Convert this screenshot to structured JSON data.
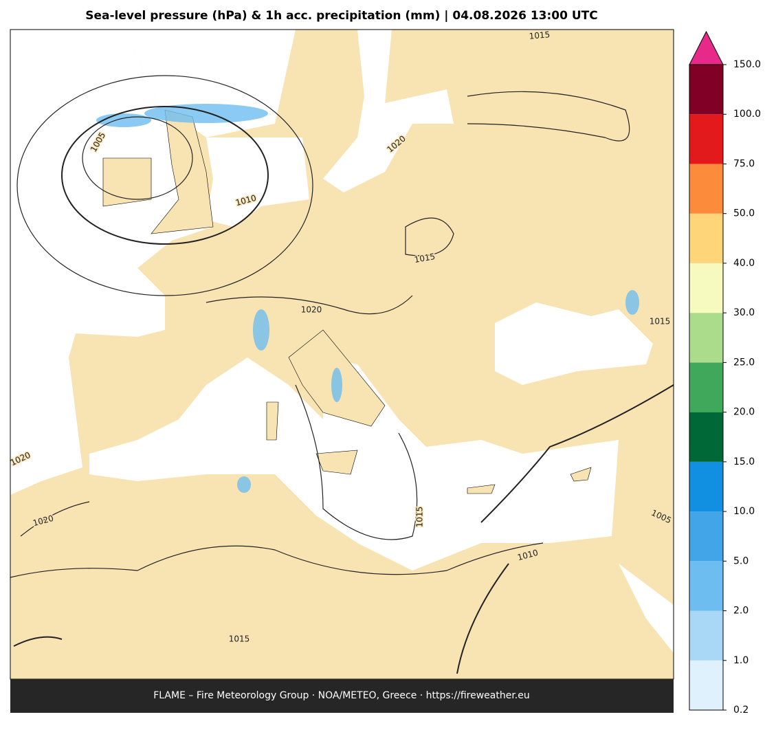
{
  "header": {
    "title": "Sea-level pressure (hPa) & 1h acc. precipitation (mm)  |  04.08.2026 13:00 UTC"
  },
  "colorbar": {
    "ticks": [
      {
        "value": 0.2,
        "label": "0.2"
      },
      {
        "value": 1,
        "label": "1.0"
      },
      {
        "value": 2,
        "label": "2.0"
      },
      {
        "value": 5,
        "label": "5.0"
      },
      {
        "value": 10,
        "label": "10.0"
      },
      {
        "value": 15,
        "label": "15.0"
      },
      {
        "value": 20,
        "label": "20.0"
      },
      {
        "value": 25,
        "label": "25.0"
      },
      {
        "value": 30,
        "label": "30.0"
      },
      {
        "value": 40,
        "label": "40.0"
      },
      {
        "value": 50,
        "label": "50.0"
      },
      {
        "value": 75,
        "label": "75.0"
      },
      {
        "value": 100,
        "label": "100.0"
      },
      {
        "value": 150,
        "label": "150.0"
      }
    ],
    "colors": [
      "#def1fc",
      "#a9d8f7",
      "#6ebdf0",
      "#41a5e8",
      "#118fe0",
      "#006837",
      "#3fa85a",
      "#abdc8b",
      "#f7fabf",
      "#fed679",
      "#fd8b3c",
      "#e31a1c",
      "#800026"
    ],
    "extend_color": "#e7298a"
  },
  "contour_labels": [
    "1015",
    "1005",
    "1020",
    "1010",
    "1015",
    "1020",
    "1015",
    "1020",
    "1020",
    "1015",
    "1005",
    "1010",
    "1015"
  ],
  "footer": {
    "text": "FLAME – Fire Meteorology Group · NOA/METEO, Greece · https://fireweather.eu"
  }
}
